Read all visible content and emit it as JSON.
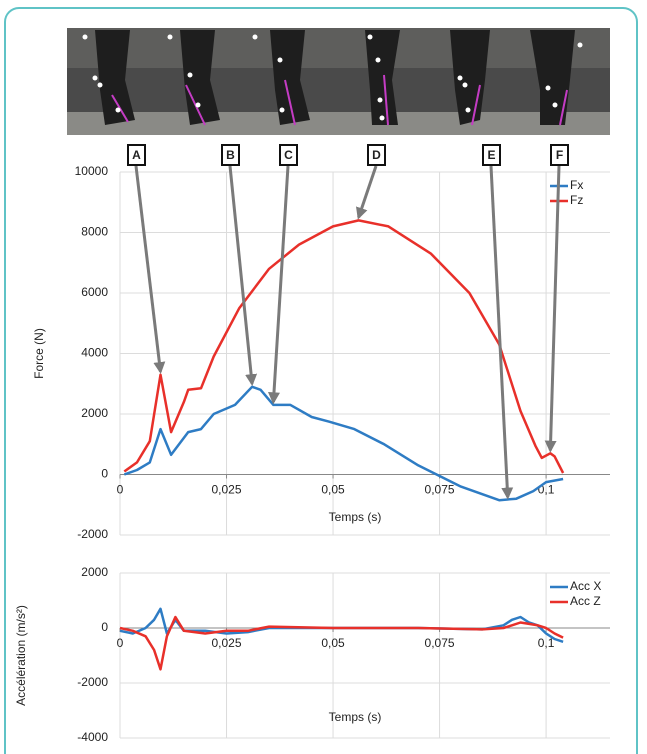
{
  "chart_data": [
    {
      "type": "line",
      "ylabel": "Force (N)",
      "xlabel": "Temps (s)",
      "xlim": [
        0,
        0.115
      ],
      "ylim": [
        -2000,
        10000
      ],
      "xticks": [
        0,
        {
          "value": 0.025,
          "label": "0,025"
        },
        {
          "value": 0.05,
          "label": "0,05"
        },
        {
          "value": 0.075,
          "label": "0,075"
        },
        {
          "value": 0.1,
          "label": "0,1"
        }
      ],
      "yticks": [
        -2000,
        0,
        2000,
        4000,
        6000,
        8000,
        10000
      ],
      "grid": true,
      "legend": "upper right",
      "series": [
        {
          "name": "Fx",
          "color": "#2e7cc4",
          "x": [
            0.001,
            0.004,
            0.007,
            0.0095,
            0.012,
            0.016,
            0.019,
            0.022,
            0.027,
            0.031,
            0.033,
            0.036,
            0.04,
            0.045,
            0.049,
            0.055,
            0.062,
            0.07,
            0.08,
            0.089,
            0.093,
            0.097,
            0.1,
            0.104
          ],
          "values": [
            0,
            150,
            400,
            1500,
            650,
            1400,
            1500,
            2000,
            2300,
            2900,
            2800,
            2300,
            2300,
            1900,
            1750,
            1500,
            1000,
            300,
            -400,
            -850,
            -800,
            -550,
            -250,
            -150
          ]
        },
        {
          "name": "Fz",
          "color": "#e8302a",
          "x": [
            0.001,
            0.004,
            0.007,
            0.0095,
            0.012,
            0.015,
            0.016,
            0.019,
            0.022,
            0.028,
            0.035,
            0.042,
            0.05,
            0.056,
            0.063,
            0.073,
            0.082,
            0.089,
            0.094,
            0.0975,
            0.099,
            0.101,
            0.102,
            0.104
          ],
          "values": [
            100,
            400,
            1100,
            3300,
            1400,
            2400,
            2800,
            2850,
            3900,
            5500,
            6800,
            7600,
            8200,
            8400,
            8200,
            7300,
            6000,
            4300,
            2100,
            950,
            550,
            700,
            600,
            50
          ]
        }
      ],
      "annotations": [
        {
          "label": "A",
          "x": 0.0095,
          "y": 3300
        },
        {
          "label": "B",
          "x": 0.031,
          "y": 2900
        },
        {
          "label": "C",
          "x": 0.036,
          "y": 2300
        },
        {
          "label": "D",
          "x": 0.056,
          "y": 8400
        },
        {
          "label": "E",
          "x": 0.091,
          "y": -850
        },
        {
          "label": "F",
          "x": 0.101,
          "y": 700
        }
      ]
    },
    {
      "type": "line",
      "ylabel": "Accélération (m/s²)",
      "xlabel": "Temps (s)",
      "xlim": [
        0,
        0.115
      ],
      "ylim": [
        -4000,
        2000
      ],
      "xticks": [
        0,
        {
          "value": 0.025,
          "label": "0,025"
        },
        {
          "value": 0.05,
          "label": "0,05"
        },
        {
          "value": 0.075,
          "label": "0,075"
        },
        {
          "value": 0.1,
          "label": "0,1"
        }
      ],
      "yticks": [
        -4000,
        -2000,
        0,
        2000
      ],
      "grid": true,
      "legend": "upper right",
      "series": [
        {
          "name": "Acc X",
          "color": "#2e7cc4",
          "x": [
            0,
            0.003,
            0.006,
            0.008,
            0.0095,
            0.011,
            0.013,
            0.015,
            0.02,
            0.025,
            0.03,
            0.035,
            0.05,
            0.07,
            0.085,
            0.09,
            0.092,
            0.094,
            0.096,
            0.098,
            0.1,
            0.102,
            0.104
          ],
          "values": [
            -100,
            -200,
            0,
            300,
            700,
            -200,
            300,
            -100,
            -100,
            -200,
            -150,
            0,
            0,
            0,
            -50,
            100,
            300,
            400,
            200,
            100,
            -200,
            -400,
            -500
          ]
        },
        {
          "name": "Acc Z",
          "color": "#e8302a",
          "x": [
            0,
            0.003,
            0.006,
            0.008,
            0.0095,
            0.011,
            0.013,
            0.015,
            0.02,
            0.025,
            0.03,
            0.035,
            0.05,
            0.07,
            0.085,
            0.09,
            0.092,
            0.094,
            0.096,
            0.098,
            0.1,
            0.102,
            0.104
          ],
          "values": [
            0,
            -100,
            -300,
            -800,
            -1500,
            -300,
            400,
            -100,
            -200,
            -100,
            -100,
            50,
            0,
            0,
            -50,
            0,
            100,
            200,
            150,
            100,
            0,
            -200,
            -350
          ]
        }
      ]
    }
  ]
}
